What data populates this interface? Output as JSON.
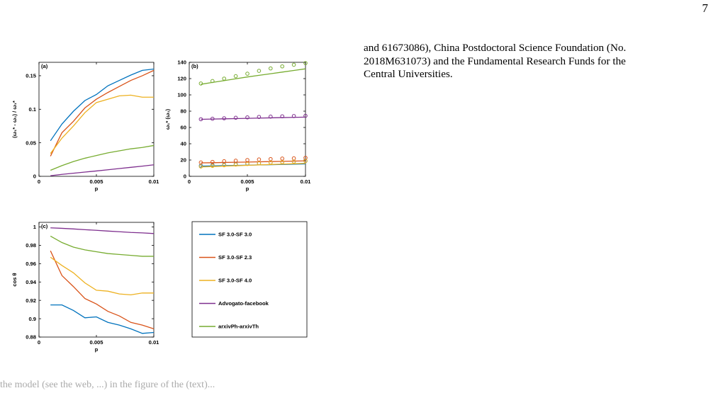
{
  "page": {
    "number": "7",
    "acknowledgment_lines": [
      "and 61673086), China Postdoctoral Science Foundation (No.",
      "2018M631073) and the Fundamental Research Funds for the",
      "Central Universities."
    ],
    "caption_fragment": "the model (see the web, ...) in the figure of the (text)..."
  },
  "legend": {
    "entries": [
      {
        "name": "SF 3.0-SF 3.0",
        "color": "#0072BD"
      },
      {
        "name": "SF 3.0-SF 2.3",
        "color": "#D95319"
      },
      {
        "name": "SF 3.0-SF 4.0",
        "color": "#EDB120"
      },
      {
        "name": "Advogato-facebook",
        "color": "#7E2F8E"
      },
      {
        "name": "arxivPh-arxivTh",
        "color": "#77AC30"
      }
    ]
  },
  "chart_data": [
    {
      "type": "line",
      "panel_label": "(a)",
      "xlabel": "p",
      "ylabel": "(ω₁* - ω₁) / ω₁*",
      "xlim": [
        0,
        0.01
      ],
      "ylim": [
        0,
        0.17
      ],
      "xticks": [
        0,
        0.005,
        0.01
      ],
      "xtick_labels": [
        "0",
        "0.005",
        "0.01"
      ],
      "yticks": [
        0,
        0.05,
        0.1,
        0.15
      ],
      "ytick_labels": [
        "0",
        "0.05",
        "0.1",
        "0.15"
      ],
      "x": [
        0.001,
        0.002,
        0.003,
        0.004,
        0.005,
        0.006,
        0.007,
        0.008,
        0.009,
        0.01
      ],
      "series": [
        {
          "name": "SF 3.0-SF 3.0",
          "color": "#0072BD",
          "values": [
            0.053,
            0.078,
            0.097,
            0.113,
            0.122,
            0.135,
            0.143,
            0.151,
            0.158,
            0.16
          ]
        },
        {
          "name": "SF 3.0-SF 2.3",
          "color": "#D95319",
          "values": [
            0.03,
            0.065,
            0.082,
            0.102,
            0.115,
            0.125,
            0.134,
            0.143,
            0.15,
            0.158
          ]
        },
        {
          "name": "SF 3.0-SF 4.0",
          "color": "#EDB120",
          "values": [
            0.034,
            0.057,
            0.075,
            0.095,
            0.11,
            0.115,
            0.12,
            0.121,
            0.118,
            0.118
          ]
        },
        {
          "name": "Advogato-facebook",
          "color": "#7E2F8E",
          "values": [
            0.0009,
            0.0029,
            0.0046,
            0.0063,
            0.008,
            0.0098,
            0.0116,
            0.0134,
            0.0152,
            0.0172
          ]
        },
        {
          "name": "arxivPh-arxivTh",
          "color": "#77AC30",
          "values": [
            0.009,
            0.016,
            0.022,
            0.027,
            0.031,
            0.035,
            0.038,
            0.041,
            0.043,
            0.046
          ]
        }
      ]
    },
    {
      "type": "line",
      "panel_label": "(b)",
      "xlabel": "p",
      "ylabel": "ω₁* (ω₁)",
      "xlim": [
        0,
        0.01
      ],
      "ylim": [
        0,
        140
      ],
      "xticks": [
        0,
        0.005,
        0.01
      ],
      "xtick_labels": [
        "0",
        "0.005",
        "0.01"
      ],
      "yticks": [
        0,
        20,
        40,
        60,
        80,
        100,
        120,
        140
      ],
      "ytick_labels": [
        "0",
        "20",
        "40",
        "60",
        "80",
        "100",
        "120",
        "140"
      ],
      "x": [
        0.001,
        0.002,
        0.003,
        0.004,
        0.005,
        0.006,
        0.007,
        0.008,
        0.009,
        0.01
      ],
      "series": [
        {
          "name": "SF 3.0-SF 3.0",
          "color": "#0072BD",
          "line": [
            12.5,
            12.8,
            13.1,
            13.4,
            13.7,
            14.0,
            14.3,
            14.6,
            14.9,
            15.2
          ],
          "markers": [
            13.0,
            13.7,
            14.3,
            15.0,
            15.6,
            16.2,
            16.9,
            17.5,
            18.1,
            18.8
          ]
        },
        {
          "name": "SF 3.0-SF 2.3",
          "color": "#D95319",
          "line": [
            16.5,
            16.7,
            17.0,
            17.3,
            17.5,
            17.8,
            18.1,
            18.4,
            18.7,
            19.0
          ],
          "markers": [
            17.0,
            17.7,
            18.5,
            19.2,
            20.0,
            20.7,
            21.2,
            21.8,
            22.1,
            22.7
          ]
        },
        {
          "name": "SF 3.0-SF 4.0",
          "color": "#EDB120",
          "line": [
            11.5,
            12.0,
            12.5,
            13.0,
            13.5,
            14.0,
            14.5,
            15.0,
            15.5,
            16.0
          ],
          "markers": [
            12.0,
            12.8,
            13.6,
            14.4,
            15.2,
            16.0,
            16.8,
            17.5,
            18.2,
            18.9
          ]
        },
        {
          "name": "Advogato-facebook",
          "color": "#7E2F8E",
          "line": [
            70.0,
            70.3,
            70.6,
            70.9,
            71.2,
            71.5,
            71.8,
            72.1,
            72.4,
            72.7
          ],
          "markers": [
            70.1,
            70.7,
            71.3,
            71.9,
            72.4,
            72.9,
            73.3,
            73.7,
            74.0,
            74.3
          ]
        },
        {
          "name": "arxivPh-arxivTh",
          "color": "#77AC30",
          "line": [
            113.0,
            115.3,
            117.5,
            119.8,
            122.0,
            124.0,
            126.0,
            128.0,
            130.0,
            132.0
          ],
          "markers": [
            114.0,
            117.0,
            120.0,
            123.0,
            126.0,
            129.5,
            132.5,
            135.0,
            137.0,
            139.0
          ]
        }
      ]
    },
    {
      "type": "line",
      "panel_label": "(c)",
      "xlabel": "p",
      "ylabel": "cos θ",
      "xlim": [
        0,
        0.01
      ],
      "ylim": [
        0.88,
        1.005
      ],
      "xticks": [
        0,
        0.005,
        0.01
      ],
      "xtick_labels": [
        "0",
        "0.005",
        "0.01"
      ],
      "yticks": [
        0.88,
        0.9,
        0.92,
        0.94,
        0.96,
        0.98,
        1
      ],
      "ytick_labels": [
        "0.88",
        "0.9",
        "0.92",
        "0.94",
        "0.96",
        "0.98",
        "1"
      ],
      "x": [
        0.001,
        0.002,
        0.003,
        0.004,
        0.005,
        0.006,
        0.007,
        0.008,
        0.009,
        0.01
      ],
      "series": [
        {
          "name": "SF 3.0-SF 3.0",
          "color": "#0072BD",
          "values": [
            0.915,
            0.915,
            0.909,
            0.901,
            0.902,
            0.896,
            0.893,
            0.889,
            0.884,
            0.885
          ]
        },
        {
          "name": "SF 3.0-SF 2.3",
          "color": "#D95319",
          "values": [
            0.974,
            0.947,
            0.935,
            0.922,
            0.916,
            0.908,
            0.903,
            0.896,
            0.893,
            0.889
          ]
        },
        {
          "name": "SF 3.0-SF 4.0",
          "color": "#EDB120",
          "values": [
            0.967,
            0.958,
            0.95,
            0.939,
            0.931,
            0.93,
            0.927,
            0.926,
            0.928,
            0.928
          ]
        },
        {
          "name": "Advogato-facebook",
          "color": "#7E2F8E",
          "values": [
            0.999,
            0.9985,
            0.9978,
            0.997,
            0.9963,
            0.9955,
            0.9948,
            0.994,
            0.9935,
            0.9928
          ]
        },
        {
          "name": "arxivPh-arxivTh",
          "color": "#77AC30",
          "values": [
            0.99,
            0.983,
            0.978,
            0.975,
            0.973,
            0.971,
            0.97,
            0.969,
            0.968,
            0.968
          ]
        }
      ]
    }
  ]
}
